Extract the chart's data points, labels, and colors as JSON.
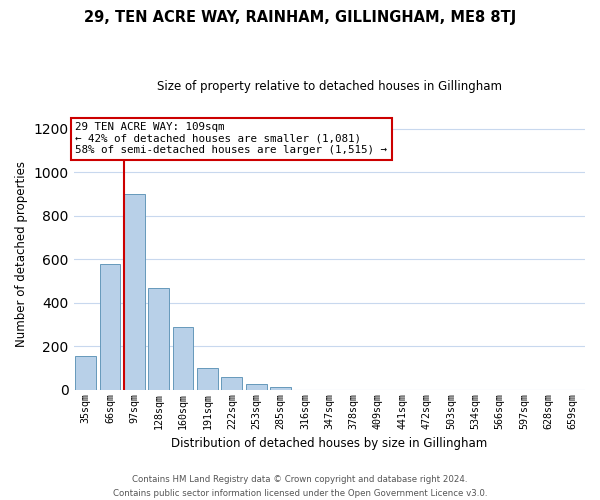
{
  "title": "29, TEN ACRE WAY, RAINHAM, GILLINGHAM, ME8 8TJ",
  "subtitle": "Size of property relative to detached houses in Gillingham",
  "xlabel": "Distribution of detached houses by size in Gillingham",
  "ylabel": "Number of detached properties",
  "bar_labels": [
    "35sqm",
    "66sqm",
    "97sqm",
    "128sqm",
    "160sqm",
    "191sqm",
    "222sqm",
    "253sqm",
    "285sqm",
    "316sqm",
    "347sqm",
    "378sqm",
    "409sqm",
    "441sqm",
    "472sqm",
    "503sqm",
    "534sqm",
    "566sqm",
    "597sqm",
    "628sqm",
    "659sqm"
  ],
  "bar_values": [
    155,
    580,
    900,
    470,
    290,
    100,
    60,
    28,
    13,
    0,
    0,
    0,
    0,
    0,
    0,
    0,
    0,
    0,
    0,
    0,
    0
  ],
  "bar_color": "#b8d0e8",
  "bar_edge_color": "#6699bb",
  "vline_color": "#cc0000",
  "vline_position": 1.575,
  "ylim": [
    0,
    1250
  ],
  "yticks": [
    0,
    200,
    400,
    600,
    800,
    1000,
    1200
  ],
  "annotation_line1": "29 TEN ACRE WAY: 109sqm",
  "annotation_line2": "← 42% of detached houses are smaller (1,081)",
  "annotation_line3": "58% of semi-detached houses are larger (1,515) →",
  "annotation_box_color": "#ffffff",
  "annotation_border_color": "#cc0000",
  "footer_line1": "Contains HM Land Registry data © Crown copyright and database right 2024.",
  "footer_line2": "Contains public sector information licensed under the Open Government Licence v3.0.",
  "background_color": "#ffffff",
  "grid_color": "#c8d8ee"
}
